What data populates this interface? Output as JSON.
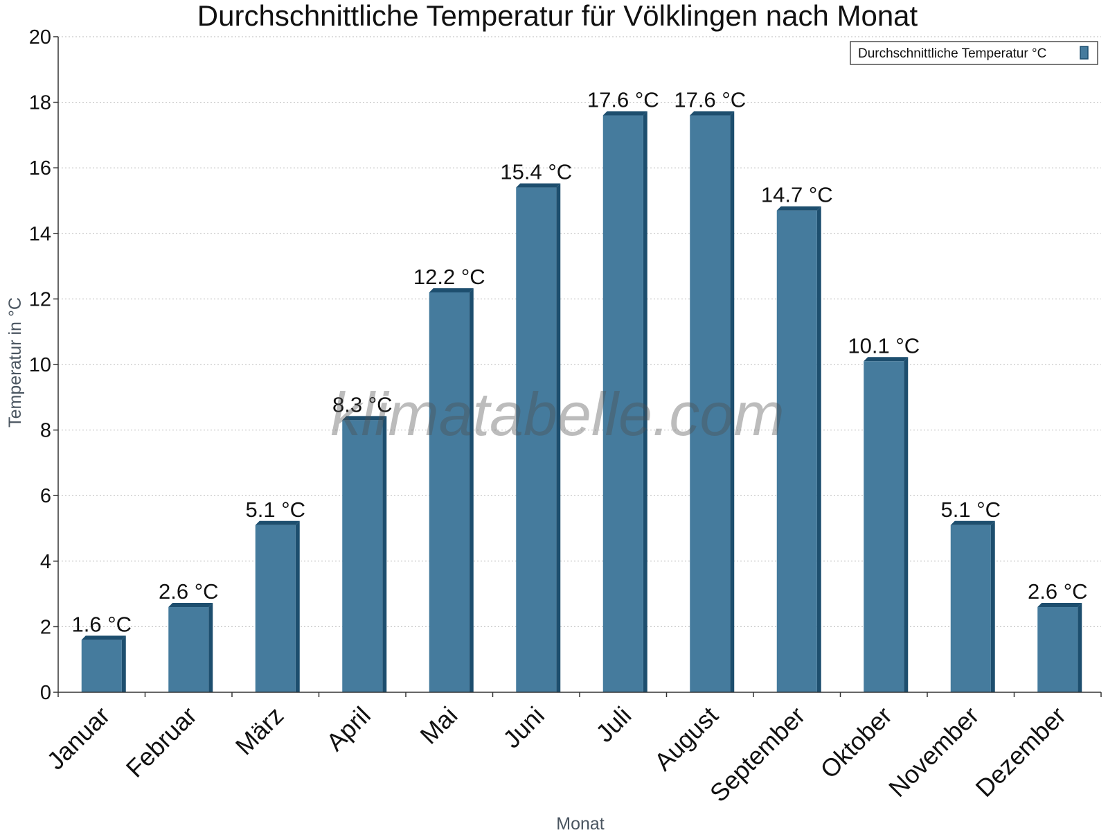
{
  "chart_data": {
    "type": "bar",
    "title": "Durchschnittliche Temperatur für Völklingen nach Monat",
    "xlabel": "Monat",
    "ylabel": "Temperatur in °C",
    "categories": [
      "Januar",
      "Februar",
      "März",
      "April",
      "Mai",
      "Juni",
      "Juli",
      "August",
      "September",
      "Oktober",
      "November",
      "Dezember"
    ],
    "series": [
      {
        "name": "Durchschnittliche Temperatur °C",
        "values": [
          1.6,
          2.6,
          5.1,
          8.3,
          12.2,
          15.4,
          17.6,
          17.6,
          14.7,
          10.1,
          5.1,
          2.6
        ],
        "labels": [
          "1.6 °C",
          "2.6 °C",
          "5.1 °C",
          "8.3 °C",
          "12.2 °C",
          "15.4 °C",
          "17.6 °C",
          "17.6 °C",
          "14.7 °C",
          "10.1 °C",
          "5.1 °C",
          "2.6 °C"
        ]
      }
    ],
    "ylim": [
      0,
      20
    ],
    "yticks": [
      0,
      2,
      4,
      6,
      8,
      10,
      12,
      14,
      16,
      18,
      20
    ],
    "grid": true,
    "legend_position": "top-right",
    "colors": {
      "bar": "#457b9d",
      "bar_shade": "#1d4e6e",
      "grid": "#bbbbbb",
      "axis": "#333333"
    }
  },
  "watermark": "klimatabelle.com"
}
